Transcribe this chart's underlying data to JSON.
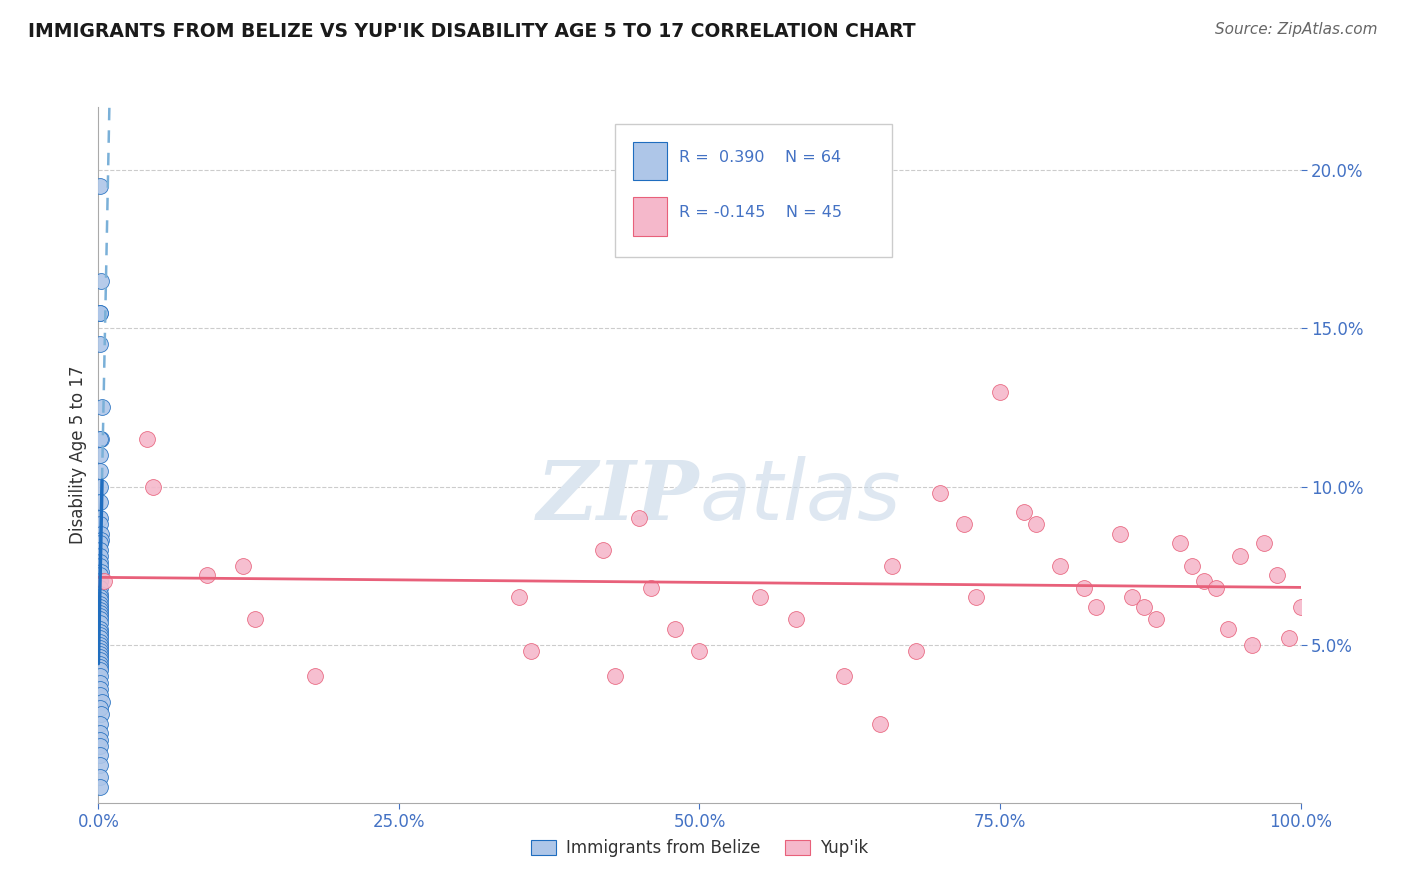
{
  "title": "IMMIGRANTS FROM BELIZE VS YUP'IK DISABILITY AGE 5 TO 17 CORRELATION CHART",
  "source": "Source: ZipAtlas.com",
  "ylabel": "Disability Age 5 to 17",
  "R_blue": 0.39,
  "N_blue": 64,
  "R_pink": -0.145,
  "N_pink": 45,
  "blue_color": "#aec6e8",
  "pink_color": "#f5b8cb",
  "blue_line_color": "#1f6dbf",
  "pink_line_color": "#e8607a",
  "blue_dashed_color": "#7ab0d8",
  "tick_color": "#4472c4",
  "watermark_color": "#dce6f0",
  "xlim": [
    0.0,
    1.0
  ],
  "ylim": [
    0.0,
    0.22
  ],
  "xticks": [
    0.0,
    0.25,
    0.5,
    0.75,
    1.0
  ],
  "xtick_labels": [
    "0.0%",
    "25.0%",
    "50.0%",
    "75.0%",
    "100.0%"
  ],
  "yticks": [
    0.05,
    0.1,
    0.15,
    0.2
  ],
  "ytick_labels": [
    "5.0%",
    "10.0%",
    "15.0%",
    "20.0%"
  ],
  "blue_scatter_x": [
    0.001,
    0.002,
    0.001,
    0.0015,
    0.001,
    0.003,
    0.002,
    0.001,
    0.001,
    0.001,
    0.001,
    0.001,
    0.001,
    0.001,
    0.002,
    0.002,
    0.001,
    0.001,
    0.001,
    0.001,
    0.001,
    0.002,
    0.001,
    0.001,
    0.001,
    0.001,
    0.001,
    0.001,
    0.001,
    0.001,
    0.001,
    0.001,
    0.001,
    0.001,
    0.001,
    0.001,
    0.001,
    0.001,
    0.001,
    0.001,
    0.001,
    0.001,
    0.001,
    0.001,
    0.001,
    0.001,
    0.001,
    0.001,
    0.001,
    0.001,
    0.001,
    0.001,
    0.001,
    0.003,
    0.001,
    0.002,
    0.001,
    0.001,
    0.001,
    0.001,
    0.001,
    0.001,
    0.001,
    0.001
  ],
  "blue_scatter_y": [
    0.195,
    0.165,
    0.155,
    0.155,
    0.145,
    0.125,
    0.115,
    0.115,
    0.11,
    0.105,
    0.1,
    0.095,
    0.09,
    0.088,
    0.085,
    0.083,
    0.082,
    0.08,
    0.078,
    0.076,
    0.075,
    0.073,
    0.072,
    0.07,
    0.068,
    0.066,
    0.065,
    0.064,
    0.063,
    0.062,
    0.061,
    0.06,
    0.059,
    0.058,
    0.057,
    0.055,
    0.054,
    0.053,
    0.052,
    0.051,
    0.05,
    0.049,
    0.048,
    0.047,
    0.046,
    0.045,
    0.044,
    0.043,
    0.042,
    0.04,
    0.038,
    0.036,
    0.034,
    0.032,
    0.03,
    0.028,
    0.025,
    0.022,
    0.02,
    0.018,
    0.015,
    0.012,
    0.008,
    0.005
  ],
  "pink_scatter_x": [
    0.005,
    0.04,
    0.045,
    0.09,
    0.12,
    0.13,
    0.18,
    0.35,
    0.36,
    0.42,
    0.43,
    0.45,
    0.46,
    0.48,
    0.5,
    0.55,
    0.58,
    0.62,
    0.65,
    0.66,
    0.68,
    0.7,
    0.72,
    0.73,
    0.75,
    0.77,
    0.78,
    0.8,
    0.82,
    0.83,
    0.85,
    0.86,
    0.87,
    0.88,
    0.9,
    0.91,
    0.92,
    0.93,
    0.94,
    0.95,
    0.96,
    0.97,
    0.98,
    0.99,
    1.0
  ],
  "pink_scatter_y": [
    0.07,
    0.115,
    0.1,
    0.072,
    0.075,
    0.058,
    0.04,
    0.065,
    0.048,
    0.08,
    0.04,
    0.09,
    0.068,
    0.055,
    0.048,
    0.065,
    0.058,
    0.04,
    0.025,
    0.075,
    0.048,
    0.098,
    0.088,
    0.065,
    0.13,
    0.092,
    0.088,
    0.075,
    0.068,
    0.062,
    0.085,
    0.065,
    0.062,
    0.058,
    0.082,
    0.075,
    0.07,
    0.068,
    0.055,
    0.078,
    0.05,
    0.082,
    0.072,
    0.052,
    0.062
  ]
}
